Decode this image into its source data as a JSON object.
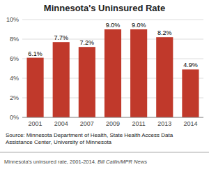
{
  "chart_data": {
    "type": "bar",
    "title": "Minnesota's Uninsured Rate",
    "categories": [
      "2001",
      "2004",
      "2007",
      "2009",
      "2011",
      "2013",
      "2014"
    ],
    "values": [
      6.1,
      7.7,
      7.2,
      9.0,
      9.0,
      8.2,
      4.9
    ],
    "value_labels": [
      "6.1%",
      "7.7%",
      "7.2%",
      "9.0%",
      "9.0%",
      "8.2%",
      "4.9%"
    ],
    "data_labels": true,
    "color": "#c0392b",
    "ylim": [
      0,
      10
    ],
    "yticks": [
      {
        "value": 0,
        "label": "0%"
      },
      {
        "value": 2,
        "label": "2%"
      },
      {
        "value": 4,
        "label": "4%"
      },
      {
        "value": 6,
        "label": "6%"
      },
      {
        "value": 8,
        "label": "8%"
      },
      {
        "value": 10,
        "label": "10%"
      }
    ],
    "grid": true,
    "annotations": [
      "Source: Minnesota Department of Health, State Health Access Data\nAssistance Center, University of Minnesota",
      "Minnesota's uninsured rate, 2001-2014. ",
      "Bill Catlin/MPR News"
    ]
  }
}
